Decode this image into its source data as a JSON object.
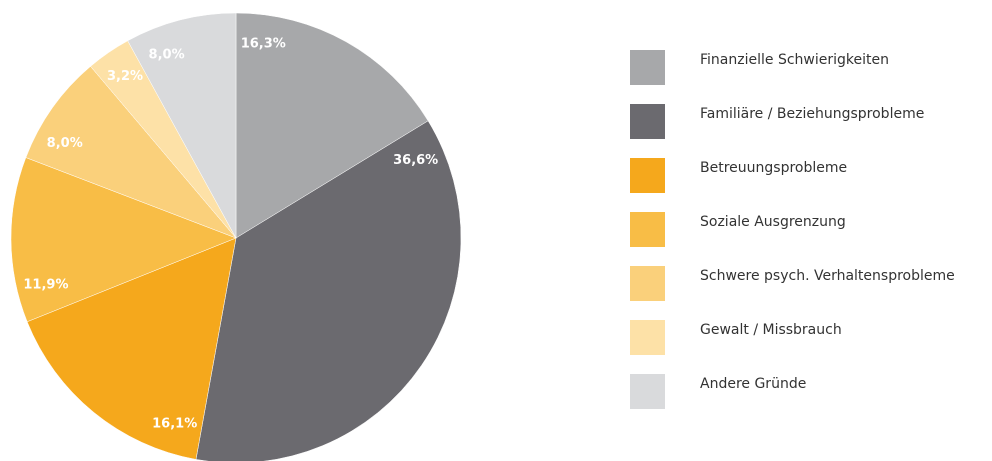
{
  "chart_data": {
    "type": "pie",
    "categories": [
      "Finanzielle Schwierigkeiten",
      "Familiäre / Beziehungsprobleme",
      "Betreuungsprobleme",
      "Soziale Ausgrenzung",
      "Schwere psych. Verhaltensprobleme",
      "Gewalt / Missbrauch",
      "Andere Gründe"
    ],
    "values": [
      16.3,
      36.6,
      16.1,
      11.9,
      8.0,
      3.2,
      8.0
    ],
    "value_labels": [
      "16,3%",
      "36,6%",
      "16,1%",
      "11,9%",
      "8,0%",
      "3,2%",
      "8,0%"
    ],
    "colors": [
      "#a7a8aa",
      "#6b6a6f",
      "#f5a81c",
      "#f8bd46",
      "#fad07b",
      "#fde1a7",
      "#d9dadc"
    ],
    "legend": "right"
  }
}
